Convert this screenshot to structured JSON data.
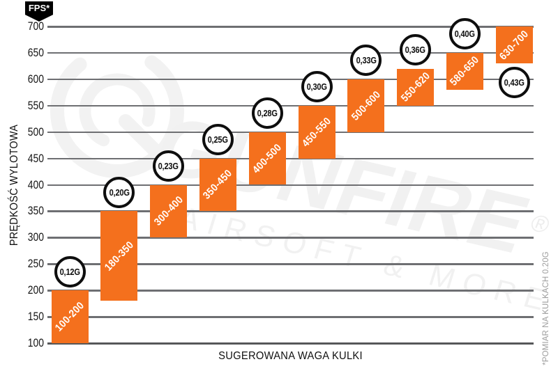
{
  "colors": {
    "bar": "#F4701D",
    "grid": "#6E6F72",
    "axis": "#565759",
    "circle_border": "#0E0E0E",
    "text": "#161616",
    "muted": "#9D9D9D",
    "badge_bg": "#000000",
    "badge_text": "#FFFFFF",
    "watermark": "#F1F1F1"
  },
  "watermark": {
    "brand": "GUNFIRE",
    "reg": "®",
    "tagline": "AIRSOFT & MORE"
  },
  "chart_data": {
    "type": "bar",
    "title": "",
    "y_unit": "FPS*",
    "ylabel": "PRĘDKOŚĆ WYLOTOWA",
    "xlabel": "SUGEROWANA WAGA KULKI",
    "footnote": "*POMIAR NA KULKACH 0.20G",
    "ylim": [
      100,
      700
    ],
    "y_ticks": [
      700,
      650,
      600,
      550,
      500,
      450,
      400,
      350,
      300,
      250,
      200,
      150,
      100
    ],
    "grid": "horizontal",
    "legend": "none",
    "bars": [
      {
        "weight": "0,12G",
        "range": "100-200",
        "fps_min": 100,
        "fps_max": 200,
        "label_pos": "above"
      },
      {
        "weight": "0,20G",
        "range": "180-350",
        "fps_min": 180,
        "fps_max": 350,
        "label_pos": "above"
      },
      {
        "weight": "0,23G",
        "range": "300-400",
        "fps_min": 300,
        "fps_max": 400,
        "label_pos": "above"
      },
      {
        "weight": "0,25G",
        "range": "350-450",
        "fps_min": 350,
        "fps_max": 450,
        "label_pos": "above"
      },
      {
        "weight": "0,28G",
        "range": "400-500",
        "fps_min": 400,
        "fps_max": 500,
        "label_pos": "above"
      },
      {
        "weight": "0,30G",
        "range": "450-550",
        "fps_min": 450,
        "fps_max": 550,
        "label_pos": "above"
      },
      {
        "weight": "0,33G",
        "range": "500-600",
        "fps_min": 500,
        "fps_max": 600,
        "label_pos": "above"
      },
      {
        "weight": "0,36G",
        "range": "550-620",
        "fps_min": 550,
        "fps_max": 620,
        "label_pos": "above"
      },
      {
        "weight": "0,40G",
        "range": "580-650",
        "fps_min": 580,
        "fps_max": 650,
        "label_pos": "above"
      },
      {
        "weight": "0,43G",
        "range": "630-700",
        "fps_min": 630,
        "fps_max": 700,
        "label_pos": "below"
      }
    ]
  }
}
